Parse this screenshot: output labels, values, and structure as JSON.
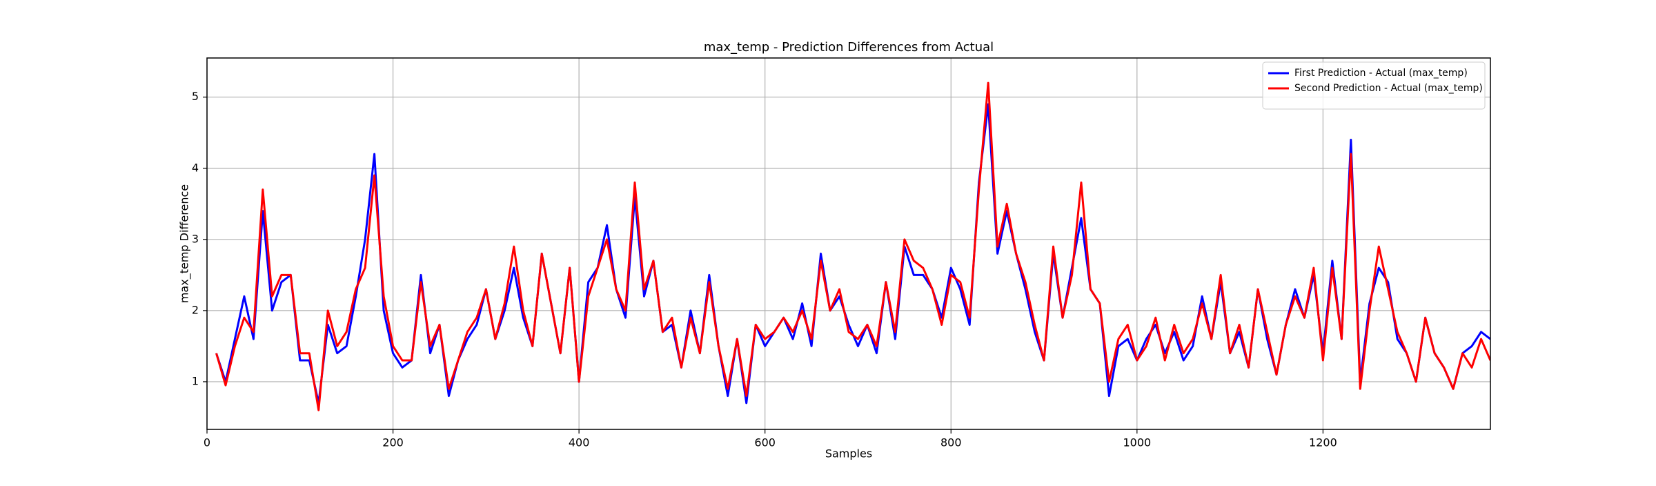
{
  "chart_data": {
    "type": "line",
    "title": "max_temp - Prediction Differences from Actual",
    "x_label": "Samples",
    "y_label": "max_temp Difference",
    "x": [
      10,
      20,
      30,
      40,
      50,
      60,
      70,
      80,
      90,
      100,
      110,
      120,
      130,
      140,
      150,
      160,
      170,
      180,
      190,
      200,
      210,
      220,
      230,
      240,
      250,
      260,
      270,
      280,
      290,
      300,
      310,
      320,
      330,
      340,
      350,
      360,
      370,
      380,
      390,
      400,
      410,
      420,
      430,
      440,
      450,
      460,
      470,
      480,
      490,
      500,
      510,
      520,
      530,
      540,
      550,
      560,
      570,
      580,
      590,
      600,
      610,
      620,
      630,
      640,
      650,
      660,
      670,
      680,
      690,
      700,
      710,
      720,
      730,
      740,
      750,
      760,
      770,
      780,
      790,
      800,
      810,
      820,
      830,
      840,
      850,
      860,
      870,
      880,
      890,
      900,
      910,
      920,
      930,
      940,
      950,
      960,
      970,
      980,
      990,
      1000,
      1010,
      1020,
      1030,
      1040,
      1050,
      1060,
      1070,
      1080,
      1090,
      1100,
      1110,
      1120,
      1130,
      1140,
      1150,
      1160,
      1170,
      1180,
      1190,
      1200,
      1210,
      1220,
      1230,
      1240,
      1250,
      1260,
      1270,
      1280,
      1290,
      1300,
      1310,
      1320,
      1330,
      1340,
      1350,
      1360,
      1370,
      1380
    ],
    "series": [
      {
        "name": "First Prediction - Actual (max_temp)",
        "color": "blue",
        "values": [
          1.4,
          1.0,
          1.6,
          2.2,
          1.6,
          3.4,
          2.0,
          2.4,
          2.5,
          1.3,
          1.3,
          0.7,
          1.8,
          1.4,
          1.5,
          2.2,
          3.0,
          4.2,
          2.0,
          1.4,
          1.2,
          1.3,
          2.5,
          1.4,
          1.8,
          0.8,
          1.3,
          1.6,
          1.8,
          2.3,
          1.6,
          2.0,
          2.6,
          1.9,
          1.5,
          2.8,
          2.1,
          1.4,
          2.6,
          1.0,
          2.4,
          2.6,
          3.2,
          2.3,
          1.9,
          3.6,
          2.2,
          2.7,
          1.7,
          1.8,
          1.2,
          2.0,
          1.4,
          2.5,
          1.5,
          0.8,
          1.6,
          0.7,
          1.8,
          1.5,
          1.7,
          1.9,
          1.6,
          2.1,
          1.5,
          2.8,
          2.0,
          2.2,
          1.8,
          1.5,
          1.8,
          1.4,
          2.4,
          1.6,
          2.9,
          2.5,
          2.5,
          2.3,
          1.9,
          2.6,
          2.3,
          1.8,
          3.8,
          4.9,
          2.8,
          3.4,
          2.8,
          2.3,
          1.7,
          1.3,
          2.8,
          1.9,
          2.6,
          3.3,
          2.3,
          2.1,
          0.8,
          1.5,
          1.6,
          1.3,
          1.6,
          1.8,
          1.4,
          1.7,
          1.3,
          1.5,
          2.2,
          1.6,
          2.4,
          1.4,
          1.7,
          1.2,
          2.3,
          1.6,
          1.1,
          1.8,
          2.3,
          1.9,
          2.5,
          1.4,
          2.7,
          1.6,
          4.4,
          1.0,
          2.1,
          2.6,
          2.4,
          1.6,
          1.4,
          1.0,
          1.9,
          1.4,
          1.2,
          0.9,
          1.4,
          1.5,
          1.7,
          1.6
        ]
      },
      {
        "name": "Second Prediction - Actual (max_temp)",
        "color": "red",
        "values": [
          1.4,
          0.95,
          1.5,
          1.9,
          1.7,
          3.7,
          2.2,
          2.5,
          2.5,
          1.4,
          1.4,
          0.6,
          2.0,
          1.5,
          1.7,
          2.3,
          2.6,
          3.9,
          2.2,
          1.5,
          1.3,
          1.3,
          2.4,
          1.5,
          1.8,
          0.9,
          1.3,
          1.7,
          1.9,
          2.3,
          1.6,
          2.1,
          2.9,
          2.0,
          1.5,
          2.8,
          2.1,
          1.4,
          2.6,
          1.0,
          2.2,
          2.6,
          3.0,
          2.3,
          2.0,
          3.8,
          2.3,
          2.7,
          1.7,
          1.9,
          1.2,
          1.9,
          1.4,
          2.4,
          1.5,
          0.9,
          1.6,
          0.8,
          1.8,
          1.6,
          1.7,
          1.9,
          1.7,
          2.0,
          1.6,
          2.7,
          2.0,
          2.3,
          1.7,
          1.6,
          1.8,
          1.5,
          2.4,
          1.7,
          3.0,
          2.7,
          2.6,
          2.3,
          1.8,
          2.5,
          2.4,
          1.9,
          3.7,
          5.2,
          2.9,
          3.5,
          2.8,
          2.4,
          1.8,
          1.3,
          2.9,
          1.9,
          2.5,
          3.8,
          2.3,
          2.1,
          1.0,
          1.6,
          1.8,
          1.3,
          1.5,
          1.9,
          1.3,
          1.8,
          1.4,
          1.6,
          2.1,
          1.6,
          2.5,
          1.4,
          1.8,
          1.2,
          2.3,
          1.7,
          1.1,
          1.8,
          2.2,
          1.9,
          2.6,
          1.3,
          2.6,
          1.6,
          4.2,
          0.9,
          2.0,
          2.9,
          2.3,
          1.7,
          1.4,
          1.0,
          1.9,
          1.4,
          1.2,
          0.9,
          1.4,
          1.2,
          1.6,
          1.3
        ]
      }
    ],
    "xlim": [
      0,
      1380
    ],
    "xticks": [
      0,
      200,
      400,
      600,
      800,
      1000,
      1200
    ],
    "ylim": [
      0.33,
      5.55
    ],
    "yticks": [
      1,
      2,
      3,
      4,
      5
    ],
    "grid": true,
    "legend": "upper right"
  }
}
